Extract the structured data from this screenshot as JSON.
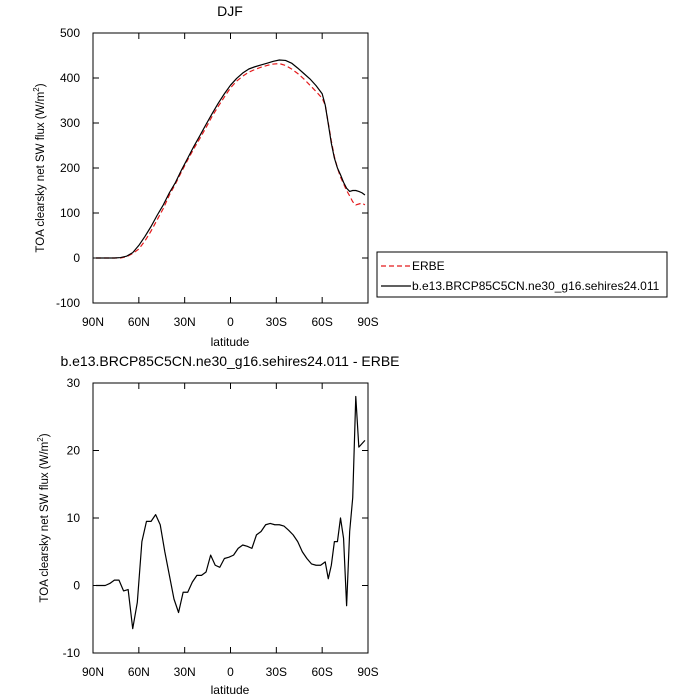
{
  "chart_data": [
    {
      "type": "line",
      "title": "DJF",
      "xlabel": "latitude",
      "ylabel_main": "TOA clearsky net SW flux (W/m",
      "ylabel_sup": "2",
      "ylabel_tail": ")",
      "xlim": [
        90,
        -90
      ],
      "ylim": [
        -100,
        500
      ],
      "x_ticks": [
        90,
        60,
        30,
        0,
        -30,
        -60,
        -90
      ],
      "x_tick_labels": [
        "90N",
        "60N",
        "30N",
        "0",
        "30S",
        "60S",
        "90S"
      ],
      "y_ticks": [
        -100,
        0,
        100,
        200,
        300,
        400,
        500
      ],
      "y_tick_labels": [
        "-100",
        "0",
        "100",
        "200",
        "300",
        "400",
        "500"
      ],
      "legend": {
        "placement": "right",
        "entries": [
          {
            "label": "ERBE",
            "color": "#e41a1c",
            "dash": "dashed"
          },
          {
            "label": "b.e13.BRCP85C5CN.ne30_g16.sehires24.011",
            "color": "#000000",
            "dash": "solid"
          }
        ]
      },
      "series": [
        {
          "name": "ERBE",
          "color": "#e41a1c",
          "dash": "dashed",
          "x": [
            88,
            84,
            80,
            76,
            72,
            68,
            64,
            60,
            56,
            52,
            48,
            44,
            40,
            36,
            32,
            28,
            24,
            20,
            16,
            12,
            8,
            4,
            0,
            -4,
            -8,
            -12,
            -16,
            -20,
            -24,
            -28,
            -32,
            -36,
            -40,
            -44,
            -48,
            -52,
            -56,
            -60,
            -62,
            -64,
            -66,
            -68,
            -70,
            -72,
            -74,
            -76,
            -78,
            -80,
            -82,
            -84,
            -86,
            -88
          ],
          "y": [
            0,
            0,
            0,
            0,
            0,
            3,
            10,
            20,
            38,
            60,
            85,
            110,
            140,
            165,
            192,
            218,
            243,
            266,
            290,
            315,
            337,
            358,
            378,
            393,
            404,
            413,
            419,
            424,
            428,
            431,
            432,
            428,
            420,
            410,
            398,
            384,
            370,
            355,
            340,
            300,
            260,
            225,
            200,
            180,
            165,
            150,
            138,
            125,
            118,
            120,
            122,
            118
          ]
        },
        {
          "name": "b.e13.BRCP85C5CN.ne30_g16.sehires24.011",
          "color": "#000000",
          "dash": "solid",
          "x": [
            88,
            84,
            80,
            76,
            72,
            68,
            64,
            60,
            56,
            52,
            48,
            44,
            40,
            36,
            32,
            28,
            24,
            20,
            16,
            12,
            8,
            4,
            0,
            -4,
            -8,
            -12,
            -16,
            -20,
            -24,
            -28,
            -32,
            -36,
            -40,
            -44,
            -48,
            -52,
            -56,
            -60,
            -62,
            -64,
            -66,
            -68,
            -70,
            -72,
            -74,
            -76,
            -78,
            -80,
            -82,
            -84,
            -86,
            -88
          ],
          "y": [
            0,
            0,
            0,
            0,
            1,
            4,
            12,
            28,
            48,
            70,
            95,
            118,
            145,
            168,
            196,
            222,
            248,
            272,
            297,
            321,
            344,
            365,
            384,
            399,
            411,
            420,
            425,
            429,
            433,
            437,
            440,
            439,
            433,
            422,
            410,
            398,
            383,
            365,
            340,
            298,
            255,
            222,
            200,
            185,
            168,
            155,
            148,
            150,
            150,
            148,
            145,
            140
          ]
        }
      ]
    },
    {
      "type": "line",
      "title": "b.e13.BRCP85C5CN.ne30_g16.sehires24.011 - ERBE",
      "xlabel": "latitude",
      "ylabel_main": "TOA clearsky net SW flux (W/m",
      "ylabel_sup": "2",
      "ylabel_tail": ")",
      "xlim": [
        90,
        -90
      ],
      "ylim": [
        -10,
        30
      ],
      "x_ticks": [
        90,
        60,
        30,
        0,
        -30,
        -60,
        -90
      ],
      "x_tick_labels": [
        "90N",
        "60N",
        "30N",
        "0",
        "30S",
        "60S",
        "90S"
      ],
      "y_ticks": [
        -10,
        0,
        10,
        20,
        30
      ],
      "y_tick_labels": [
        "-10",
        "0",
        "10",
        "20",
        "30"
      ],
      "series": [
        {
          "color": "#000000",
          "dash": "solid",
          "x": [
            88,
            85,
            82,
            79,
            76,
            73,
            70,
            67,
            64,
            61,
            58,
            55,
            52,
            49,
            46,
            43,
            40,
            37,
            34,
            31,
            28,
            25,
            22,
            19,
            16,
            13,
            10,
            7,
            4,
            1,
            -2,
            -5,
            -8,
            -11,
            -14,
            -17,
            -20,
            -23,
            -26,
            -29,
            -32,
            -35,
            -38,
            -41,
            -44,
            -47,
            -50,
            -53,
            -56,
            -59,
            -62,
            -64,
            -66,
            -68,
            -70,
            -72,
            -74,
            -76,
            -78,
            -80,
            -82,
            -84,
            -86,
            -88
          ],
          "y": [
            0,
            0,
            0,
            0.3,
            0.8,
            0.8,
            -0.8,
            -0.6,
            -6.4,
            -2.5,
            6.5,
            9.5,
            9.5,
            10.5,
            9,
            5,
            1.5,
            -2.0,
            -4.0,
            -1.0,
            -1.0,
            0.5,
            1.5,
            1.5,
            2.0,
            4.5,
            3.0,
            2.7,
            4.0,
            4.2,
            4.5,
            5.5,
            6.0,
            5.8,
            5.5,
            7.5,
            8.0,
            9.0,
            9.2,
            9.0,
            9.0,
            8.8,
            8.2,
            7.5,
            6.5,
            5.0,
            4.0,
            3.2,
            3.0,
            3.0,
            3.5,
            1.0,
            3.0,
            6.5,
            6.5,
            10.0,
            7.0,
            -3.0,
            8.0,
            13.0,
            28.0,
            20.5,
            21.0,
            21.5
          ]
        }
      ]
    }
  ]
}
